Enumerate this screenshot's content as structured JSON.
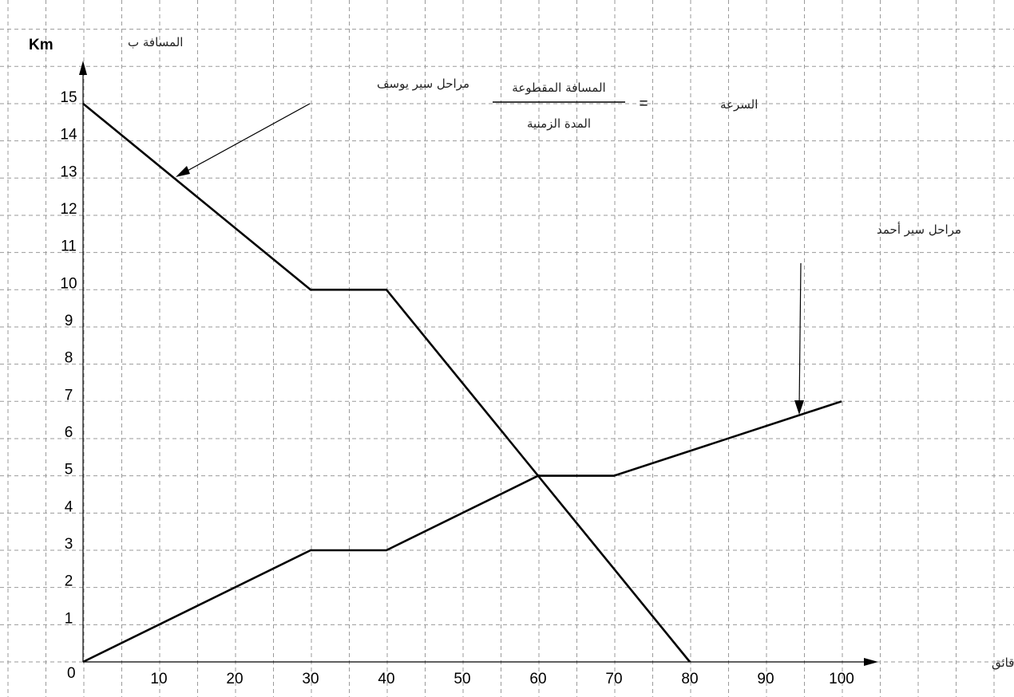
{
  "chart_data": {
    "type": "line",
    "y_axis_label_ar": "المسافة ب",
    "y_axis_label_unit": "Km",
    "x_axis_label": "الزمن بالدقائق",
    "x_ticks": [
      10,
      20,
      30,
      40,
      50,
      60,
      70,
      80,
      90,
      100
    ],
    "y_ticks": [
      1,
      2,
      3,
      4,
      5,
      6,
      7,
      8,
      9,
      10,
      11,
      12,
      13,
      14,
      15
    ],
    "origin_label": "0",
    "xlim": [
      0,
      100
    ],
    "ylim": [
      0,
      15
    ],
    "grid": true,
    "series": [
      {
        "name": "مراحل سير يوسف",
        "x": [
          0,
          30,
          40,
          80
        ],
        "y": [
          15,
          10,
          10,
          0
        ]
      },
      {
        "name": "مراحل سير أحمد",
        "x": [
          0,
          30,
          40,
          60,
          70,
          100
        ],
        "y": [
          0,
          3,
          3,
          5,
          5,
          7
        ]
      }
    ],
    "formula": {
      "lhs": "السرعة",
      "equals": "=",
      "numerator": "المسافة المقطوعة",
      "denominator": "المدة الزمنية"
    }
  }
}
